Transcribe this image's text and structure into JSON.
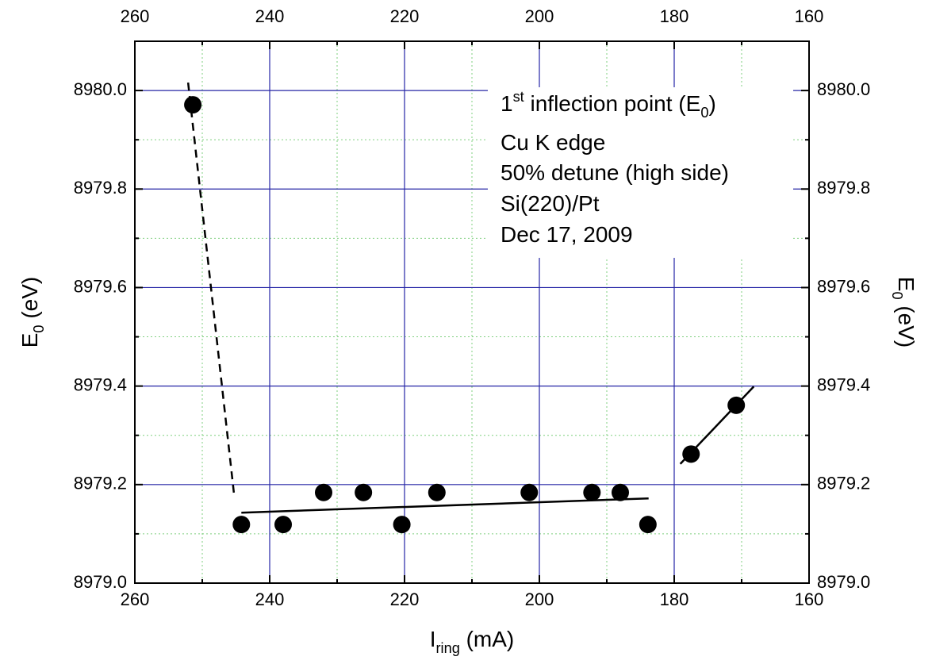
{
  "chart_data": {
    "type": "scatter",
    "x_label": {
      "parts": [
        "I",
        "ring",
        " (mA)"
      ],
      "offsets": [
        0,
        -1,
        0
      ]
    },
    "y_label": {
      "parts": [
        "E",
        "0",
        " (eV)"
      ],
      "offsets": [
        0,
        -1,
        0
      ]
    },
    "y2_label": {
      "parts": [
        "E",
        "0",
        " (eV)"
      ],
      "offsets": [
        0,
        -1,
        0
      ]
    },
    "annotation": [
      {
        "parts": [
          "1",
          "st",
          " inflection point (E",
          "0",
          ")"
        ],
        "offsets": [
          0,
          1,
          0,
          -1,
          0
        ]
      },
      {
        "parts": [
          "Cu K edge"
        ],
        "offsets": [
          0
        ]
      },
      {
        "parts": [
          "50% detune (high side)"
        ],
        "offsets": [
          0
        ]
      },
      {
        "parts": [
          "Si(220)/Pt"
        ],
        "offsets": [
          0
        ]
      },
      {
        "parts": [
          "Dec 17, 2009"
        ],
        "offsets": [
          0
        ]
      }
    ],
    "x": [
      251.4,
      244.2,
      238.0,
      232.0,
      226.1,
      220.4,
      215.2,
      201.5,
      192.2,
      188.0,
      183.9,
      177.5,
      170.8
    ],
    "values": [
      8979.971,
      8979.119,
      8979.119,
      8979.184,
      8979.184,
      8979.119,
      8979.184,
      8979.184,
      8979.184,
      8979.184,
      8979.119,
      8979.262,
      8979.361
    ],
    "color": "#000000",
    "fit_lines": [
      {
        "style": "dashed",
        "x": [
          252.1,
          245.3
        ],
        "values": [
          8980.016,
          8979.182
        ]
      },
      {
        "style": "solid",
        "x": [
          244.2,
          183.8
        ],
        "values": [
          8979.143,
          8979.172
        ]
      },
      {
        "style": "solid",
        "x": [
          179.1,
          168.2
        ],
        "values": [
          8979.242,
          8979.399
        ]
      }
    ],
    "xlim": [
      260,
      160
    ],
    "ylim": [
      8979.0,
      8980.1
    ],
    "xticks": [
      260,
      240,
      220,
      200,
      180,
      160
    ],
    "minor_xticks": [
      250,
      230,
      210,
      190,
      170
    ],
    "yticks": [
      {
        "value": 8979.0,
        "label": "8979.0"
      },
      {
        "value": 8979.2,
        "label": "8979.2"
      },
      {
        "value": 8979.4,
        "label": "8979.4"
      },
      {
        "value": 8979.6,
        "label": "8979.6"
      },
      {
        "value": 8979.8,
        "label": "8979.8"
      },
      {
        "value": 8980.0,
        "label": "8980.0"
      }
    ],
    "minor_yticks": [
      8979.1,
      8979.3,
      8979.5,
      8979.7,
      8979.9
    ],
    "grid": true,
    "grid_color": "#2626a6",
    "minor_grid_color": "#7fcf7f"
  }
}
